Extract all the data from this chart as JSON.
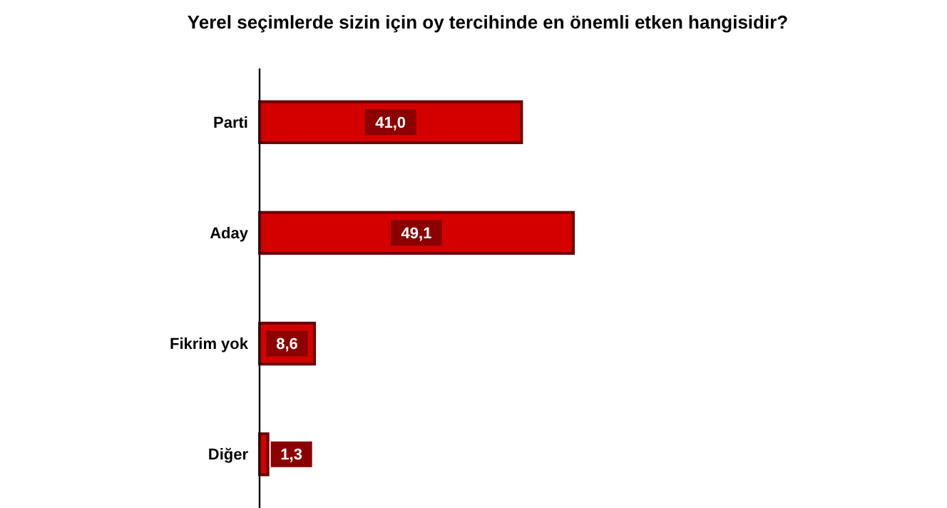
{
  "chart_data": {
    "type": "bar",
    "orientation": "horizontal",
    "title": "Yerel seçimlerde sizin için oy tercihinde en önemli etken hangisidir?",
    "categories": [
      "Parti",
      "Aday",
      "Fikrim yok",
      "Diğer"
    ],
    "values": [
      41.0,
      49.1,
      8.6,
      1.3
    ],
    "value_labels": [
      "41,0",
      "49,1",
      "8,6",
      "1,3"
    ],
    "color": "#d40000"
  }
}
